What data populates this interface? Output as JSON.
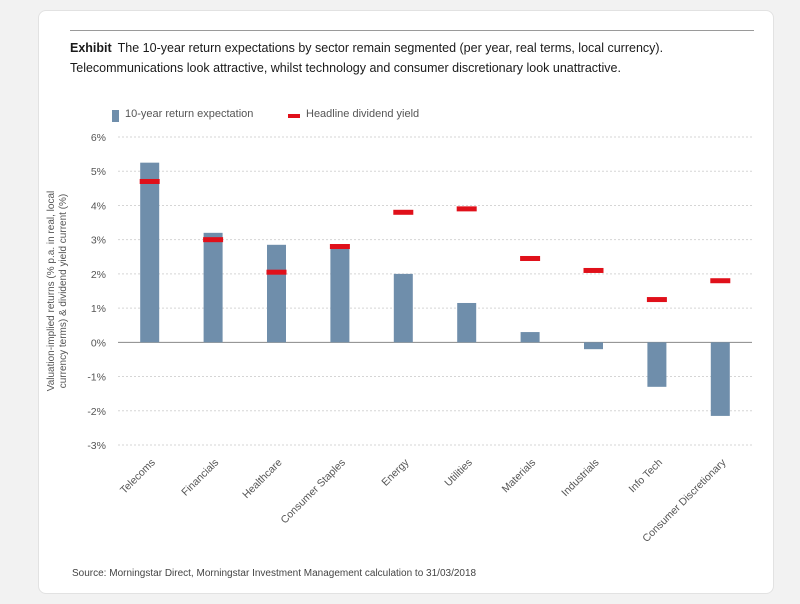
{
  "title": {
    "lead": "Exhibit",
    "line1": "The 10-year return expectations by sector remain segmented (per year, real terms, local currency).",
    "line2": "Telecommunications look attractive, whilst technology and consumer discretionary look unattractive."
  },
  "source": "Source: Morningstar Direct, Morningstar Investment Management calculation to 31/03/2018",
  "colors": {
    "bar": "#6f8eab",
    "dash": "#e0101a",
    "grid": "#d5d5d5",
    "axis": "#888888",
    "tick": "#555555"
  },
  "chart_data": {
    "type": "bar",
    "categories": [
      "Telecoms",
      "Financials",
      "Healthcare",
      "Consumer Staples",
      "Energy",
      "Utilities",
      "Materials",
      "Industrials",
      "Info Tech",
      "Consumer Discretionary"
    ],
    "series": [
      {
        "name": "10-year return expectation",
        "type": "bar",
        "values": [
          5.25,
          3.2,
          2.85,
          2.85,
          2.0,
          1.15,
          0.3,
          -0.2,
          -1.3,
          -2.15
        ]
      },
      {
        "name": "Headline dividend yield",
        "type": "dash",
        "values": [
          4.7,
          3.0,
          2.05,
          2.8,
          3.8,
          3.9,
          2.45,
          2.1,
          1.25,
          1.8
        ]
      }
    ],
    "ylabel": "Valuation-implied returns (% p.a. in real, local currency terms) & dividend yield current (%)",
    "ylim": [
      -3,
      6
    ],
    "yticks": [
      6,
      5,
      4,
      3,
      2,
      1,
      0,
      -1,
      -2,
      -3
    ],
    "ytick_labels": [
      "6%",
      "5%",
      "4%",
      "3%",
      "2%",
      "1%",
      "0%",
      "-1%",
      "-2%",
      "-3%"
    ],
    "grid": true,
    "legend_position": "top-left"
  }
}
